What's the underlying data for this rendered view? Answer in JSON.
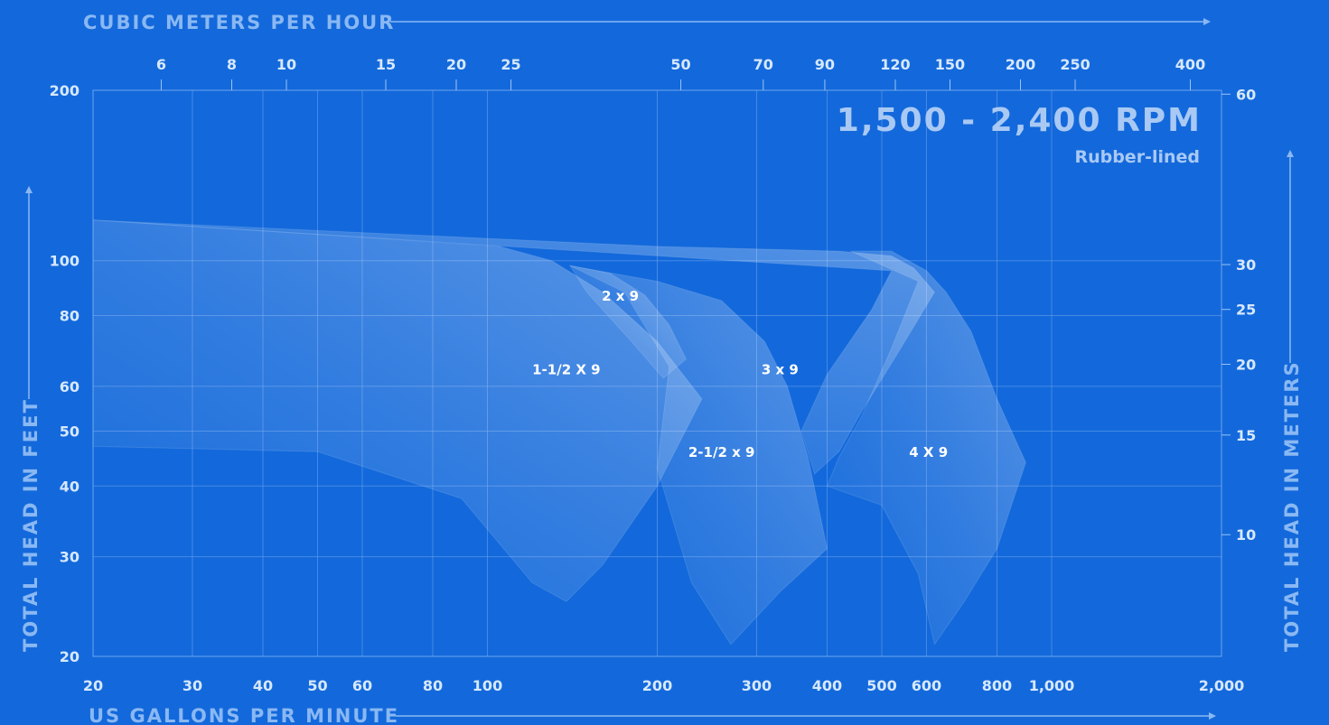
{
  "chart_data": {
    "type": "area",
    "title": "1,500 - 2,400 RPM",
    "subtitle": "Rubber-lined",
    "xlabel": "US GALLONS PER MINUTE",
    "x2label": "CUBIC METERS PER HOUR",
    "ylabel": "TOTAL HEAD IN FEET",
    "y2label": "TOTAL HEAD IN METERS",
    "x_scale": "log",
    "y_scale": "log",
    "xlim": [
      20,
      2000
    ],
    "ylim": [
      20,
      200
    ],
    "x_ticks": [
      "20",
      "30",
      "40",
      "50",
      "60",
      "80",
      "100",
      "200",
      "300",
      "400",
      "500",
      "600",
      "800",
      "1,000",
      "2,000"
    ],
    "x_tick_values": [
      20,
      30,
      40,
      50,
      60,
      80,
      100,
      200,
      300,
      400,
      500,
      600,
      800,
      1000,
      2000
    ],
    "x2_ticks": [
      "6",
      "8",
      "10",
      "15",
      "20",
      "25",
      "50",
      "70",
      "90",
      "120",
      "150",
      "200",
      "250",
      "400"
    ],
    "x2_tick_values": [
      6,
      8,
      10,
      15,
      20,
      25,
      50,
      70,
      90,
      120,
      150,
      200,
      250,
      400
    ],
    "y_ticks": [
      "20",
      "30",
      "40",
      "50",
      "60",
      "80",
      "100",
      "200"
    ],
    "y_tick_values": [
      20,
      30,
      40,
      50,
      60,
      80,
      100,
      200
    ],
    "y2_ticks": [
      "10",
      "15",
      "20",
      "25",
      "30",
      "60"
    ],
    "y2_tick_values": [
      10,
      15,
      20,
      25,
      30,
      60
    ],
    "grid": true,
    "series": [
      {
        "name": "1-1/2 X 9",
        "label_at": [
          138,
          63
        ],
        "outline": [
          [
            20,
            118
          ],
          [
            60,
            110
          ],
          [
            105,
            106
          ],
          [
            130,
            100
          ],
          [
            160,
            88
          ],
          [
            200,
            72
          ],
          [
            240,
            57
          ],
          [
            200,
            40
          ],
          [
            160,
            29
          ],
          [
            138,
            25
          ],
          [
            120,
            27
          ],
          [
            90,
            38
          ],
          [
            50,
            46
          ],
          [
            20,
            47
          ]
        ]
      },
      {
        "name": "2 x 9",
        "label_at": [
          172,
          85
        ],
        "outline": [
          [
            140,
            98
          ],
          [
            165,
            95
          ],
          [
            190,
            87
          ],
          [
            210,
            77
          ],
          [
            225,
            67
          ],
          [
            205,
            62
          ],
          [
            180,
            72
          ],
          [
            150,
            88
          ]
        ]
      },
      {
        "name": "2-1/2 x 9",
        "label_at": [
          260,
          45
        ],
        "outline": [
          [
            140,
            98
          ],
          [
            200,
            92
          ],
          [
            260,
            85
          ],
          [
            310,
            72
          ],
          [
            340,
            60
          ],
          [
            370,
            45
          ],
          [
            400,
            31
          ],
          [
            330,
            26
          ],
          [
            270,
            21
          ],
          [
            230,
            27
          ],
          [
            200,
            43
          ],
          [
            210,
            65
          ],
          [
            175,
            88
          ]
        ]
      },
      {
        "name": "3 x 9",
        "label_at": [
          330,
          63
        ],
        "outline": [
          [
            20,
            118
          ],
          [
            200,
            106
          ],
          [
            420,
            104
          ],
          [
            520,
            102
          ],
          [
            570,
            97
          ],
          [
            620,
            88
          ],
          [
            540,
            70
          ],
          [
            460,
            54
          ],
          [
            420,
            46
          ],
          [
            380,
            42
          ],
          [
            360,
            50
          ],
          [
            400,
            63
          ],
          [
            480,
            82
          ],
          [
            520,
            96
          ]
        ]
      },
      {
        "name": "4 X 9",
        "label_at": [
          605,
          45
        ],
        "outline": [
          [
            440,
            104
          ],
          [
            520,
            104
          ],
          [
            600,
            96
          ],
          [
            650,
            88
          ],
          [
            720,
            75
          ],
          [
            800,
            57
          ],
          [
            900,
            44
          ],
          [
            800,
            31
          ],
          [
            700,
            25
          ],
          [
            620,
            21
          ],
          [
            580,
            28
          ],
          [
            500,
            37
          ],
          [
            400,
            40
          ],
          [
            420,
            45
          ],
          [
            460,
            53
          ],
          [
            520,
            70
          ],
          [
            580,
            92
          ]
        ]
      }
    ]
  }
}
